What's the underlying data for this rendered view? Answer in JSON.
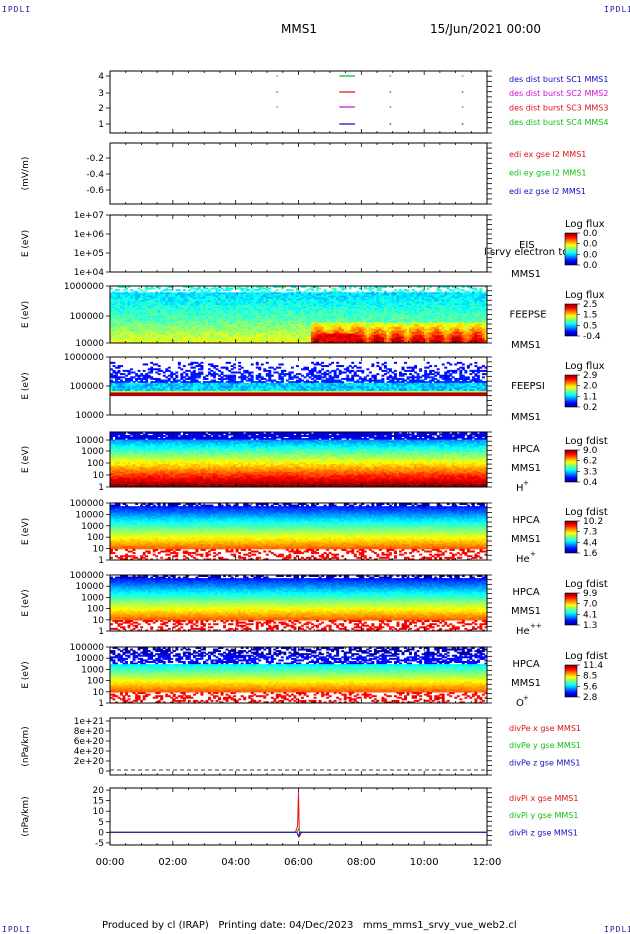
{
  "header": {
    "corner_tl": "IPDLI",
    "corner_tr": "IPDLI",
    "corner_bl": "IPDLI",
    "corner_br": "IPDLI",
    "title": "MMS1",
    "datetime": "15/Jun/2021 00:00"
  },
  "footer": {
    "text": "Produced by cl (IRAP)   Printing date: 04/Dec/2023   mms_mms1_srvy_vue_web2.cl"
  },
  "colors": {
    "red": "#e01010",
    "green": "#10c010",
    "blue": "#1010c0",
    "magenta": "#d010d0"
  },
  "chart_data": [
    {
      "type": "line",
      "panel": "burst",
      "yticks": [
        "4",
        "3",
        "2",
        "1"
      ],
      "ylabel": "",
      "legend": [
        {
          "label": "des dist burst SC1 MMS1",
          "color": "#1010c0"
        },
        {
          "label": "des dist burst SC2 MMS2",
          "color": "#d010d0"
        },
        {
          "label": "des dist burst SC3 MMS3",
          "color": "#e01010"
        },
        {
          "label": "des dist burst SC4 MMS4",
          "color": "#10c010"
        }
      ],
      "series": [
        {
          "name": "des dist burst SC1 MMS1",
          "level": 1,
          "intervals": [
            [
              7.3,
              7.8
            ],
            [
              8.9,
              8.95
            ],
            [
              11.2,
              11.25
            ]
          ]
        },
        {
          "name": "des dist burst SC2 MMS2",
          "level": 2,
          "intervals": [
            [
              5.3,
              5.32
            ],
            [
              7.3,
              7.8
            ],
            [
              8.9,
              8.95
            ],
            [
              11.2,
              11.25
            ]
          ]
        },
        {
          "name": "des dist burst SC3 MMS3",
          "level": 3,
          "intervals": [
            [
              5.3,
              5.32
            ],
            [
              7.3,
              7.8
            ],
            [
              8.9,
              8.95
            ],
            [
              11.2,
              11.25
            ]
          ]
        },
        {
          "name": "des dist burst SC4 MMS4",
          "level": 4,
          "intervals": [
            [
              5.3,
              5.32
            ],
            [
              7.3,
              7.8
            ],
            [
              8.9,
              8.95
            ],
            [
              11.2,
              11.25
            ]
          ]
        }
      ]
    },
    {
      "type": "line",
      "panel": "edi",
      "ylabel": "(mV/m)",
      "yticks": [
        "-0.2",
        "-0.4",
        "-0.6"
      ],
      "legend": [
        {
          "label": "edi ex gse l2 MMS1",
          "color": "#e01010"
        },
        {
          "label": "edi ey gse l2 MMS1",
          "color": "#10c010"
        },
        {
          "label": "edi ez gse l2 MMS1",
          "color": "#1010c0"
        }
      ]
    },
    {
      "type": "heatmap",
      "panel": "eis",
      "ylabel": "E (eV)",
      "yticks": [
        "1e+07",
        "1e+06",
        "1e+05",
        "1e+04"
      ],
      "labels": [
        "EIS",
        "MMS1"
      ],
      "overlay_text": "l srvy electron to",
      "colorbar_title": "Log flux",
      "colorbar_ticks": [
        "0.0",
        "0.0",
        "0.0",
        "0.0"
      ]
    },
    {
      "type": "heatmap",
      "panel": "feepse",
      "ylabel": "E (eV)",
      "yticks": [
        "1000000",
        "100000",
        "10000"
      ],
      "labels": [
        "FEEPSE",
        "MMS1"
      ],
      "colorbar_title": "Log flux",
      "colorbar_ticks": [
        "2.5",
        "1.5",
        "0.5",
        "-0.4"
      ]
    },
    {
      "type": "heatmap",
      "panel": "feepsi",
      "ylabel": "E (eV)",
      "yticks": [
        "1000000",
        "100000",
        "10000"
      ],
      "labels": [
        "FEEPSI",
        "MMS1"
      ],
      "colorbar_title": "Log flux",
      "colorbar_ticks": [
        "2.9",
        "2.0",
        "1.1",
        "0.2"
      ]
    },
    {
      "type": "heatmap",
      "panel": "hpca_h",
      "ylabel": "E (eV)",
      "yticks": [
        "10000",
        "1000",
        "100",
        "10",
        "1"
      ],
      "labels": [
        "HPCA",
        "MMS1",
        "H"
      ],
      "species_sup": "+",
      "colorbar_title": "Log fdist",
      "colorbar_ticks": [
        "9.0",
        "6.2",
        "3.3",
        "0.4"
      ]
    },
    {
      "type": "heatmap",
      "panel": "hpca_he",
      "ylabel": "E (eV)",
      "yticks": [
        "100000",
        "10000",
        "1000",
        "100",
        "10",
        "1"
      ],
      "labels": [
        "HPCA",
        "MMS1",
        "He"
      ],
      "species_sup": "+",
      "colorbar_title": "Log fdist",
      "colorbar_ticks": [
        "10.2",
        "7.3",
        "4.4",
        "1.6"
      ]
    },
    {
      "type": "heatmap",
      "panel": "hpca_hepp",
      "ylabel": "E (eV)",
      "yticks": [
        "100000",
        "10000",
        "1000",
        "100",
        "10",
        "1"
      ],
      "labels": [
        "HPCA",
        "MMS1",
        "He"
      ],
      "species_sup": "++",
      "colorbar_title": "Log fdist",
      "colorbar_ticks": [
        "9.9",
        "7.0",
        "4.1",
        "1.3"
      ]
    },
    {
      "type": "heatmap",
      "panel": "hpca_o",
      "ylabel": "E (eV)",
      "yticks": [
        "100000",
        "10000",
        "1000",
        "100",
        "10",
        "1"
      ],
      "labels": [
        "HPCA",
        "MMS1",
        "O"
      ],
      "species_sup": "+",
      "colorbar_title": "Log fdist",
      "colorbar_ticks": [
        "11.4",
        "8.5",
        "5.6",
        "2.8"
      ]
    },
    {
      "type": "line",
      "panel": "divpe",
      "ylabel": "(nPa/km)",
      "yticks": [
        "1e+21",
        "8e+20",
        "6e+20",
        "4e+20",
        "2e+20",
        "0"
      ],
      "legend": [
        {
          "label": "divPe x gse MMS1",
          "color": "#e01010"
        },
        {
          "label": "divPe y gse MMS1",
          "color": "#10c010"
        },
        {
          "label": "divPe z gse MMS1",
          "color": "#1010c0"
        }
      ]
    },
    {
      "type": "line",
      "panel": "divpi",
      "ylabel": "(nPa/km)",
      "yticks": [
        "20",
        "15",
        "10",
        "5",
        "0",
        "-5"
      ],
      "ylim": [
        -6,
        21
      ],
      "legend": [
        {
          "label": "divPi x gse MMS1",
          "color": "#e01010"
        },
        {
          "label": "divPi y gse MMS1",
          "color": "#10c010"
        },
        {
          "label": "divPi z gse MMS1",
          "color": "#1010c0"
        }
      ],
      "series": [
        {
          "name": "divPi x gse MMS1",
          "x": [
            0,
            5.9,
            5.97,
            6.0,
            6.03,
            6.1,
            12
          ],
          "y": [
            0,
            0,
            3,
            19,
            -2,
            0,
            0
          ]
        },
        {
          "name": "divPi y gse MMS1",
          "x": [
            0,
            5.95,
            6.0,
            6.05,
            12
          ],
          "y": [
            0,
            0,
            1.5,
            0,
            0
          ]
        },
        {
          "name": "divPi z gse MMS1",
          "x": [
            0,
            5.95,
            6.0,
            6.05,
            12
          ],
          "y": [
            0,
            0,
            -2,
            0,
            0
          ]
        }
      ]
    }
  ],
  "xaxis": {
    "ticks": [
      "00:00",
      "02:00",
      "04:00",
      "06:00",
      "08:00",
      "10:00",
      "12:00"
    ]
  }
}
